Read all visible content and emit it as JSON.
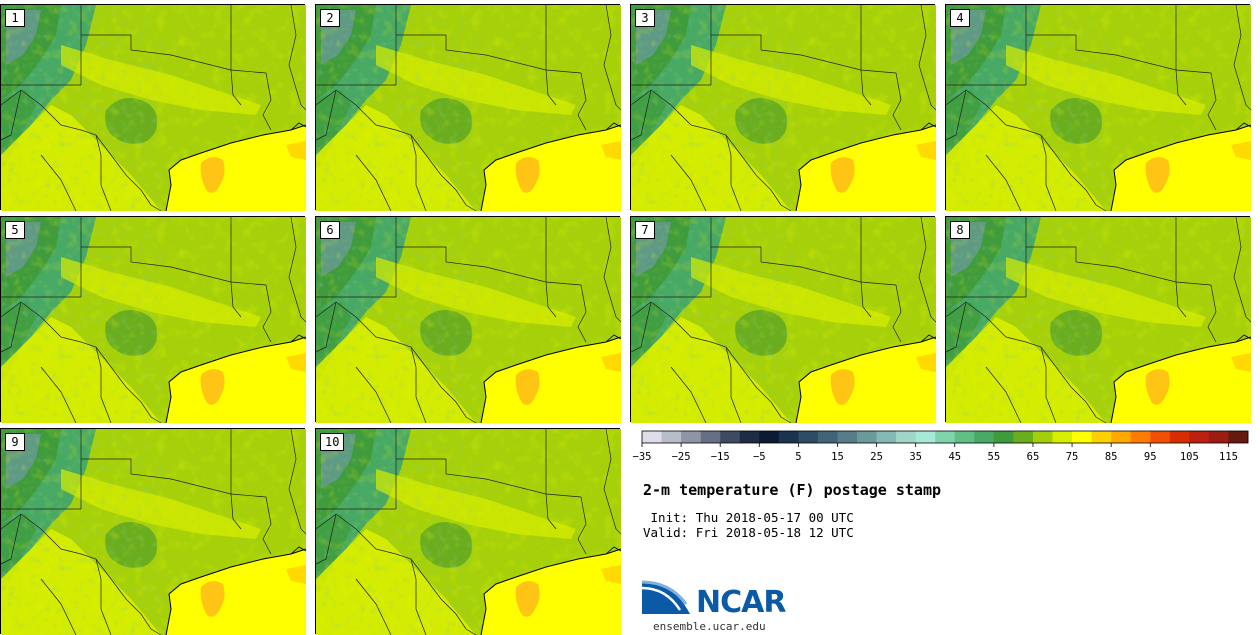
{
  "product": {
    "title": "2-m temperature (F) postage stamp",
    "init_label": " Init:",
    "init_value": "Thu 2018-05-17 00 UTC",
    "valid_label": "Valid:",
    "valid_value": "Fri 2018-05-18 12 UTC"
  },
  "members": [
    "1",
    "2",
    "3",
    "4",
    "5",
    "6",
    "7",
    "8",
    "9",
    "10"
  ],
  "colorbar": {
    "min": -35,
    "max": 120,
    "step": 5,
    "tick_labels": [
      "−35",
      "−25",
      "−15",
      "−5",
      "5",
      "15",
      "25",
      "35",
      "45",
      "55",
      "65",
      "75",
      "85",
      "95",
      "105",
      "115"
    ],
    "colors": [
      "#dcdde6",
      "#b9bcc9",
      "#8f95a6",
      "#667085",
      "#3e4a60",
      "#1e2c44",
      "#0b1a33",
      "#1c3350",
      "#2f4c67",
      "#416477",
      "#567d89",
      "#6b9a9d",
      "#84b8b3",
      "#9fd6c8",
      "#a8e8d6",
      "#80d3aa",
      "#5fbf87",
      "#48a964",
      "#3f9b3b",
      "#6aae20",
      "#a2cf0a",
      "#d8ee00",
      "#ffff00",
      "#ffd000",
      "#ffa800",
      "#ff7c00",
      "#f24f00",
      "#d82d00",
      "#bb2010",
      "#9d1c12",
      "#651a0f"
    ]
  },
  "colors": {
    "land_base": "#a6d10a",
    "warm_land": "#d8ee00",
    "ocean": "#ffff00",
    "hot_spot": "#ffc414",
    "cool_band": "#6aae20",
    "mountain": "#3f9b3b",
    "high_mountain": "#6b9a9d"
  },
  "branding": {
    "org": "NCAR",
    "website": "ensemble.ucar.edu"
  }
}
